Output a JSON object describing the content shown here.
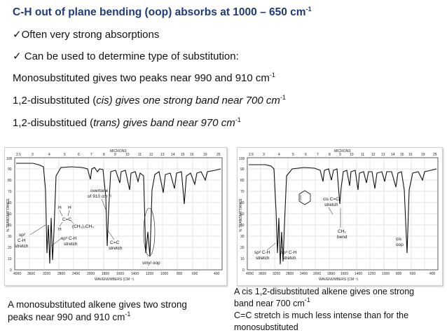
{
  "title": {
    "text": "C-H out of plane bending (oop) absorbs at 1000 – 650 cm",
    "sup": "-1"
  },
  "bullets": [
    {
      "mark": "✓",
      "text": "Often very strong absorptions"
    },
    {
      "mark": "✓",
      "text": " Can be used to determine type of substitution:"
    }
  ],
  "lines": {
    "mono": {
      "text": "Monosubstituted gives two peaks near 990 and 910 cm",
      "sup": "-1"
    },
    "cis": {
      "pre": "1,2-disubstituted (",
      "em": "cis) gives one strong band near 700 cm",
      "sup": "-1"
    },
    "trans": {
      "pre": "1,2-disubstitued (",
      "em": "trans) gives  band near 970 cm",
      "sup": "-1"
    }
  },
  "spectrum_left": {
    "top_label": "MICRONS",
    "bottom_label": "WAVENUMBERS (CM⁻¹)",
    "y_label": "% TRANSMITTANCE",
    "microns": [
      "2.5",
      "3",
      "4",
      "5",
      "6",
      "7",
      "8",
      "9",
      "10",
      "11",
      "12",
      "13",
      "14",
      "15",
      "16",
      "19",
      "25"
    ],
    "wavenumbers": [
      "4000",
      "3600",
      "3200",
      "2800",
      "2400",
      "2000",
      "1800",
      "1600",
      "1400",
      "1200",
      "1000",
      "800",
      "600",
      "400"
    ],
    "y_ticks": [
      "100",
      "90",
      "80",
      "70",
      "60",
      "50",
      "40",
      "30",
      "20",
      "10",
      "0"
    ],
    "annotations": {
      "overtone_1": "overtone",
      "overtone_2": "of 910 cm⁻¹",
      "sp2_1": "sp²",
      "sp2_2": "C-H",
      "sp2_3": "stretch",
      "sp3_1": "sp³ C-H",
      "sp3_2": "stretch",
      "cc_1": "C=C",
      "cc_2": "stretch",
      "vinyl": "vinyl oop",
      "mol_h1": "H",
      "mol_h2": "H",
      "mol_h3": "H",
      "mol_cc": "C=C",
      "mol_chain": "(CH₂)₃CH₃"
    }
  },
  "spectrum_right": {
    "top_label": "MICRONS",
    "bottom_label": "WAVENUMBERS (CM⁻¹)",
    "y_label": "% TRANSMITTANCE",
    "microns": [
      "2.5",
      "3",
      "4",
      "5",
      "6",
      "7",
      "8",
      "9",
      "10",
      "11",
      "12",
      "13",
      "14",
      "15",
      "16",
      "19",
      "25"
    ],
    "wavenumbers": [
      "4000",
      "3600",
      "3200",
      "2800",
      "2400",
      "2000",
      "1800",
      "1600",
      "1400",
      "1200",
      "1000",
      "800",
      "600",
      "400"
    ],
    "y_ticks": [
      "100",
      "90",
      "80",
      "70",
      "60",
      "50",
      "40",
      "30",
      "20",
      "10",
      "0"
    ],
    "annotations": {
      "cis_cc_1": "cis C=C",
      "cis_cc_2": "stretch",
      "ch2_1": "CH₂",
      "ch2_2": "bend",
      "cis_oop_1": "cis",
      "cis_oop_2": "oop",
      "sp2_1": "sp² C-H",
      "sp2_2": "stretch",
      "sp3_1": "sp³ C-H",
      "sp3_2": "stretch"
    }
  },
  "caption_left": {
    "line1": "A monosubstituted alkene gives two strong",
    "line2": "peaks near 990 and 910 cm",
    "sup": "-1"
  },
  "caption_right": {
    "line1": "A cis 1,2-disubstituted alkene gives one strong",
    "line2": "band near 700 cm",
    "sup": "-1",
    "line3": "C=C stretch is much less intense than for the",
    "line4": "monosubstituted"
  }
}
